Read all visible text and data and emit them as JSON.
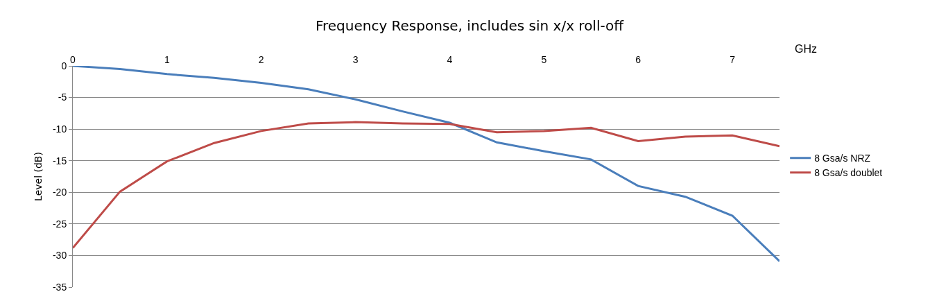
{
  "chart_data": {
    "type": "line",
    "title": "Frequency Response, includes sin x/x roll-off",
    "xlabel": "GHz",
    "ylabel": "Level (dB)",
    "x": [
      0,
      0.5,
      1,
      1.5,
      2,
      2.5,
      3,
      3.5,
      4,
      4.5,
      5,
      5.5,
      6,
      6.5,
      7,
      7.5
    ],
    "series": [
      {
        "name": "8 Gsa/s NRZ",
        "color": "#4a7ebb",
        "values": [
          0,
          -0.5,
          -1.3,
          -1.9,
          -2.7,
          -3.7,
          -5.3,
          -7.2,
          -9,
          -12.1,
          -13.5,
          -14.8,
          -19,
          -20.7,
          -23.7,
          -30.9
        ]
      },
      {
        "name": "8 Gsa/s doublet",
        "color": "#be4b48",
        "values": [
          -28.8,
          -19.9,
          -15.1,
          -12.2,
          -10.3,
          -9.1,
          -8.9,
          -9.1,
          -9.2,
          -10.5,
          -10.3,
          -9.8,
          -11.9,
          -11.2,
          -11,
          -12.7
        ]
      }
    ],
    "xlim": [
      0,
      7.5
    ],
    "xticks": [
      0,
      1,
      2,
      3,
      4,
      5,
      6,
      7
    ],
    "ylim": [
      -35,
      0
    ],
    "yticks": [
      0,
      -5,
      -10,
      -15,
      -20,
      -25,
      -30,
      -35
    ],
    "grid": "y",
    "legend": "right",
    "marker": "none",
    "line_style": "solid"
  }
}
